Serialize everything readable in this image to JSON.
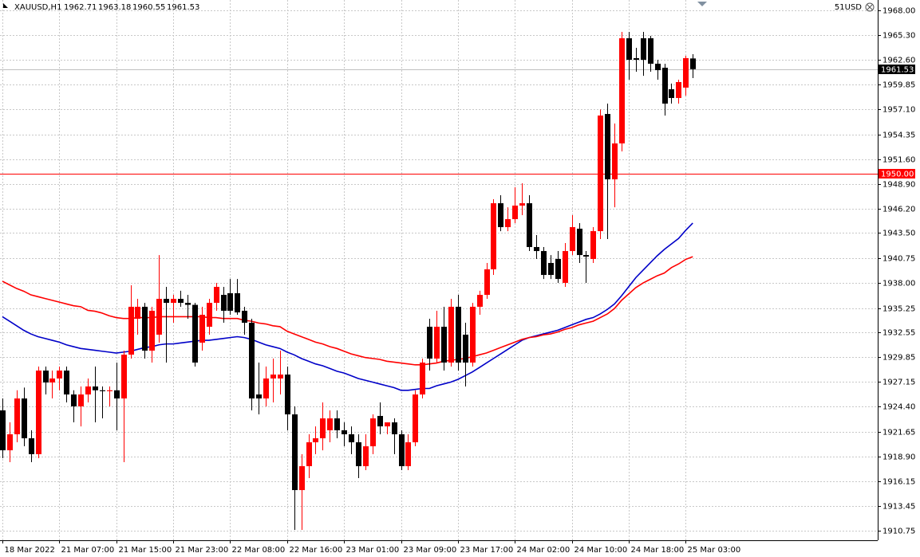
{
  "chart_data": {
    "type": "candlestick",
    "symbol": "XAUUSD,H1",
    "corner_label": "51USD",
    "categories": [
      "18 Mar 2022",
      null,
      null,
      null,
      null,
      null,
      null,
      null,
      "21 Mar 07:00",
      null,
      null,
      null,
      null,
      null,
      null,
      null,
      "21 Mar 15:00",
      null,
      null,
      null,
      null,
      null,
      null,
      null,
      "21 Mar 23:00",
      null,
      null,
      null,
      null,
      null,
      null,
      null,
      "22 Mar 08:00",
      null,
      null,
      null,
      null,
      null,
      null,
      null,
      "22 Mar 16:00",
      null,
      null,
      null,
      null,
      null,
      null,
      null,
      "23 Mar 01:00",
      null,
      null,
      null,
      null,
      null,
      null,
      null,
      "23 Mar 09:00",
      null,
      null,
      null,
      null,
      null,
      null,
      null,
      "23 Mar 17:00",
      null,
      null,
      null,
      null,
      null,
      null,
      null,
      "24 Mar 02:00",
      null,
      null,
      null,
      null,
      null,
      null,
      null,
      "24 Mar 10:00",
      null,
      null,
      null,
      null,
      null,
      null,
      null,
      "24 Mar 18:00",
      null,
      null,
      null,
      null,
      null,
      null,
      null,
      "25 Mar 03:00",
      null
    ],
    "ohlc": {
      "open": [
        1923.99,
        1919.6,
        1921.36,
        1925.3,
        1920.92,
        1919.17,
        1928.37,
        1927.06,
        1927.5,
        1928.37,
        1925.74,
        1924.43,
        1925.74,
        1926.62,
        1926.2,
        1926.1,
        1926.2,
        1925.3,
        1930.12,
        1934.07,
        1935.39,
        1930.56,
        1932.32,
        1936.26,
        1935.82,
        1936.26,
        1935.82,
        1935.6,
        1931.44,
        1933.19,
        1935.82,
        1936.7,
        1936.88,
        1936.88,
        1934.95,
        1933.63,
        1925.74,
        1925.3,
        1927.5,
        1927.5,
        1927.93,
        1923.55,
        1915.22,
        1917.85,
        1920.48,
        1920.92,
        1921.8,
        1923.11,
        1921.8,
        1921.36,
        1920.48,
        1917.85,
        1920.04,
        1923.38,
        1922.23,
        1922.67,
        1921.36,
        1917.85,
        1920.48,
        1925.74,
        1933.19,
        1929.69,
        1933.19,
        1929.25,
        1935.39,
        1932.32,
        1929.25,
        1935.39,
        1936.7,
        1939.51,
        1946.78,
        1944.15,
        1945.03,
        1946.52,
        1946.78,
        1941.96,
        1941.52,
        1940.21,
        1940.65,
        1938.02,
        1941.52,
        1943.98,
        1941.08,
        1940.65,
        1943.71,
        1956.6,
        1949.41,
        1953.36,
        1964.93,
        1962.74,
        1964.93,
        1964.93,
        1962.13,
        1961.69,
        1959.32,
        1958.36,
        1959.5,
        1962.71
      ],
      "high": [
        1925.3,
        1922.67,
        1926.2,
        1926.5,
        1921.8,
        1928.81,
        1928.81,
        1928.37,
        1928.81,
        1928.81,
        1926.2,
        1926.62,
        1927.5,
        1928.81,
        1926.62,
        1926.62,
        1929.25,
        1930.56,
        1937.75,
        1936.26,
        1935.82,
        1935.39,
        1941.08,
        1937.58,
        1936.7,
        1937.15,
        1936.7,
        1935.82,
        1935.39,
        1936.26,
        1938.02,
        1937.58,
        1938.45,
        1938.45,
        1935.39,
        1934.07,
        1929.25,
        1928.81,
        1929.69,
        1930.56,
        1928.81,
        1924.43,
        1919.17,
        1921.36,
        1922.23,
        1924.87,
        1923.99,
        1923.99,
        1922.67,
        1922.23,
        1921.36,
        1921.36,
        1923.55,
        1924.87,
        1922.67,
        1923.11,
        1921.8,
        1921.36,
        1926.2,
        1929.69,
        1934.07,
        1934.95,
        1935.39,
        1936.26,
        1936.7,
        1933.63,
        1935.82,
        1937.15,
        1940.21,
        1947.22,
        1947.66,
        1946.34,
        1948.54,
        1948.98,
        1947.66,
        1943.28,
        1941.96,
        1941.08,
        1941.52,
        1942.4,
        1945.47,
        1944.59,
        1941.52,
        1944.15,
        1957.1,
        1957.74,
        1955.55,
        1965.63,
        1965.63,
        1963.88,
        1965.63,
        1965.19,
        1962.56,
        1962.13,
        1959.95,
        1960.37,
        1963.0,
        1963.18
      ],
      "low": [
        1918.73,
        1918.29,
        1920.48,
        1920.04,
        1918.29,
        1918.73,
        1925.74,
        1925.3,
        1926.2,
        1924.87,
        1922.67,
        1922.23,
        1924.87,
        1922.67,
        1923.11,
        1924.43,
        1921.8,
        1918.29,
        1929.69,
        1932.32,
        1929.69,
        1929.25,
        1931.44,
        1929.25,
        1933.63,
        1935.39,
        1934.07,
        1928.81,
        1930.56,
        1932.32,
        1934.95,
        1933.63,
        1934.51,
        1934.51,
        1932.32,
        1923.99,
        1923.55,
        1924.43,
        1924.87,
        1925.74,
        1921.8,
        1910.84,
        1910.84,
        1916.54,
        1919.17,
        1919.6,
        1920.48,
        1920.92,
        1920.04,
        1919.17,
        1916.54,
        1917.41,
        1919.17,
        1921.36,
        1921.36,
        1919.17,
        1917.41,
        1917.41,
        1920.04,
        1925.3,
        1928.37,
        1929.25,
        1928.37,
        1928.81,
        1928.37,
        1926.62,
        1928.81,
        1934.51,
        1936.26,
        1938.89,
        1943.71,
        1943.71,
        1944.59,
        1945.47,
        1941.52,
        1940.65,
        1938.45,
        1938.45,
        1938.02,
        1937.58,
        1941.08,
        1940.21,
        1938.02,
        1940.21,
        1942.84,
        1942.84,
        1946.34,
        1952.48,
        1960.37,
        1961.25,
        1960.8,
        1961.25,
        1960.37,
        1956.43,
        1957.74,
        1957.74,
        1958.62,
        1960.55
      ],
      "close": [
        1919.6,
        1921.36,
        1925.3,
        1920.92,
        1919.17,
        1928.37,
        1927.06,
        1927.5,
        1928.37,
        1925.74,
        1924.43,
        1925.74,
        1926.62,
        1926.2,
        1926.1,
        1926.2,
        1925.3,
        1930.12,
        1935.39,
        1935.39,
        1930.56,
        1934.95,
        1936.26,
        1935.82,
        1936.26,
        1935.82,
        1935.6,
        1929.25,
        1934.51,
        1935.82,
        1937.58,
        1934.95,
        1934.95,
        1934.77,
        1933.63,
        1925.3,
        1925.3,
        1927.5,
        1927.93,
        1927.93,
        1923.55,
        1915.22,
        1917.85,
        1920.48,
        1920.92,
        1923.11,
        1923.11,
        1921.8,
        1921.36,
        1920.48,
        1917.85,
        1920.04,
        1923.11,
        1922.23,
        1922.67,
        1921.36,
        1917.85,
        1920.48,
        1925.74,
        1929.25,
        1929.69,
        1933.19,
        1929.25,
        1935.39,
        1929.25,
        1929.25,
        1935.39,
        1936.7,
        1939.51,
        1946.78,
        1944.15,
        1945.03,
        1946.52,
        1946.78,
        1941.96,
        1941.52,
        1938.89,
        1938.89,
        1938.45,
        1941.52,
        1944.15,
        1941.08,
        1940.91,
        1943.71,
        1956.43,
        1949.41,
        1953.36,
        1964.93,
        1962.56,
        1962.56,
        1962.56,
        1962.13,
        1961.42,
        1957.74,
        1958.36,
        1960.11,
        1962.74,
        1961.53
      ]
    },
    "up_color": "#ff0000",
    "down_color": "#000000",
    "series": [
      {
        "color": "#0000c8",
        "values": [
          1934.3,
          1933.8,
          1933.3,
          1932.8,
          1932.4,
          1932.1,
          1931.9,
          1931.7,
          1931.5,
          1931.2,
          1931.0,
          1930.8,
          1930.7,
          1930.6,
          1930.5,
          1930.4,
          1930.3,
          1930.4,
          1930.5,
          1930.7,
          1930.9,
          1931.0,
          1931.2,
          1931.3,
          1931.3,
          1931.4,
          1931.5,
          1931.6,
          1931.7,
          1931.7,
          1931.8,
          1931.9,
          1932.0,
          1932.1,
          1932.0,
          1931.8,
          1931.5,
          1931.2,
          1931.0,
          1930.8,
          1930.4,
          1930.1,
          1929.7,
          1929.4,
          1929.1,
          1928.9,
          1928.6,
          1928.3,
          1928.1,
          1927.8,
          1927.5,
          1927.3,
          1927.1,
          1926.9,
          1926.7,
          1926.5,
          1926.2,
          1926.2,
          1926.3,
          1926.4,
          1926.4,
          1926.7,
          1926.9,
          1927.1,
          1927.4,
          1927.8,
          1928.2,
          1928.7,
          1929.2,
          1929.7,
          1930.2,
          1930.7,
          1931.2,
          1931.7,
          1932.0,
          1932.2,
          1932.4,
          1932.6,
          1932.8,
          1933.1,
          1933.4,
          1933.7,
          1934.0,
          1934.2,
          1934.6,
          1935.1,
          1935.7,
          1936.6,
          1937.6,
          1938.6,
          1939.4,
          1940.2,
          1941.0,
          1941.7,
          1942.3,
          1942.9,
          1943.8,
          1944.6
        ]
      },
      {
        "color": "#ff0000",
        "values": [
          1938.2,
          1937.8,
          1937.4,
          1937.1,
          1936.7,
          1936.5,
          1936.3,
          1936.1,
          1935.9,
          1935.7,
          1935.5,
          1935.4,
          1935.0,
          1934.9,
          1934.7,
          1934.4,
          1934.2,
          1934.1,
          1934.1,
          1934.2,
          1934.2,
          1934.2,
          1934.3,
          1934.3,
          1934.3,
          1934.3,
          1934.3,
          1934.3,
          1934.3,
          1934.2,
          1934.2,
          1934.1,
          1934.1,
          1934.1,
          1933.9,
          1933.8,
          1933.6,
          1933.5,
          1933.3,
          1933.2,
          1932.7,
          1932.4,
          1932.1,
          1931.8,
          1931.5,
          1931.3,
          1931.0,
          1930.8,
          1930.5,
          1930.2,
          1930.0,
          1929.8,
          1929.7,
          1929.6,
          1929.4,
          1929.3,
          1929.2,
          1929.1,
          1929.0,
          1929.0,
          1929.1,
          1929.2,
          1929.4,
          1929.5,
          1929.6,
          1929.7,
          1929.9,
          1930.1,
          1930.3,
          1930.6,
          1930.9,
          1931.2,
          1931.5,
          1931.8,
          1932.0,
          1932.1,
          1932.3,
          1932.4,
          1932.6,
          1932.9,
          1933.1,
          1933.4,
          1933.6,
          1933.8,
          1934.2,
          1934.6,
          1935.2,
          1936.1,
          1936.8,
          1937.5,
          1938.0,
          1938.4,
          1938.8,
          1939.1,
          1939.7,
          1940.1,
          1940.6,
          1940.9
        ]
      }
    ],
    "bid_line_color": "#c0c0c0",
    "levels": [
      {
        "price": {
          "value": 1950,
          "label": "1950.00"
        },
        "color": "#ff0000"
      }
    ],
    "ylim": [
      1909.7,
      1969.14
    ],
    "yticks": [
      {
        "value": 1968,
        "label": "1968.00"
      },
      {
        "value": 1965.3,
        "label": "1965.30"
      },
      {
        "value": 1962.6,
        "label": "1962.60"
      },
      1959.85,
      {
        "value": 1957.1,
        "label": "1957.10"
      },
      1954.35,
      {
        "value": 1951.6,
        "label": "1951.60"
      },
      {
        "value": 1948.9,
        "label": "1948.90"
      },
      {
        "value": 1946.2,
        "label": "1946.20"
      },
      {
        "value": 1943.5,
        "label": "1943.50"
      },
      1940.75,
      {
        "value": 1938,
        "label": "1938.00"
      },
      1935.25,
      1932.55,
      1929.85,
      1927.15,
      {
        "value": 1924.4,
        "label": "1924.40"
      },
      1921.65,
      {
        "value": 1918.9,
        "label": "1918.90"
      },
      1916.15,
      1913.45,
      1910.75
    ],
    "grid": true
  }
}
